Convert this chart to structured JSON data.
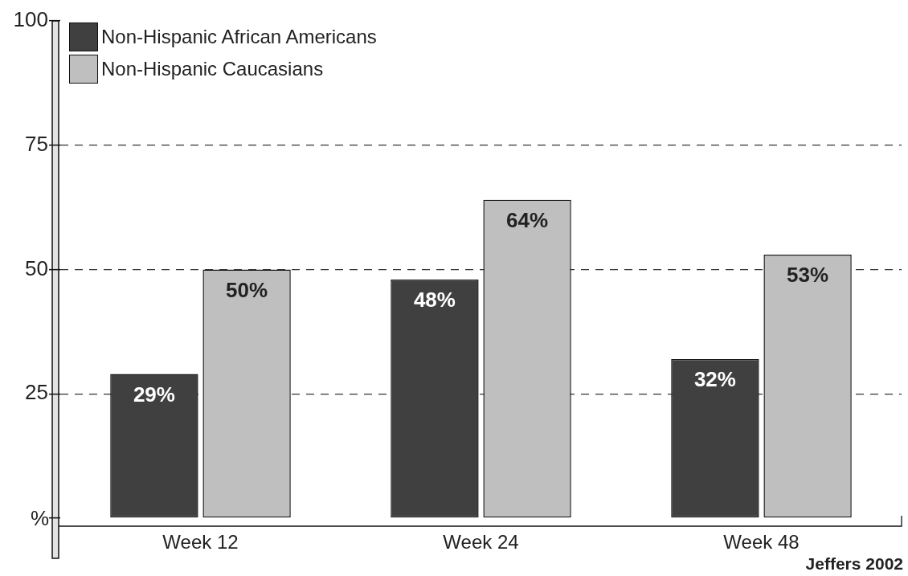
{
  "chart_data": {
    "type": "bar",
    "categories": [
      "Week 12",
      "Week 24",
      "Week 48"
    ],
    "series": [
      {
        "name": "Non-Hispanic African Americans",
        "color": "#404040",
        "values": [
          29,
          48,
          32
        ],
        "value_labels": [
          "29%",
          "48%",
          "32%"
        ]
      },
      {
        "name": "Non-Hispanic Caucasians",
        "color": "#bfbfbf",
        "values": [
          50,
          64,
          53
        ],
        "value_labels": [
          "50%",
          "64%",
          "53%"
        ]
      }
    ],
    "ylabel": "%",
    "ylim": [
      0,
      100
    ],
    "yticks": [
      {
        "value": 0,
        "label": null
      },
      25,
      50,
      75,
      100
    ],
    "grid": "y",
    "legend": "top left",
    "annotations": [
      "Jeffers 2002"
    ]
  }
}
